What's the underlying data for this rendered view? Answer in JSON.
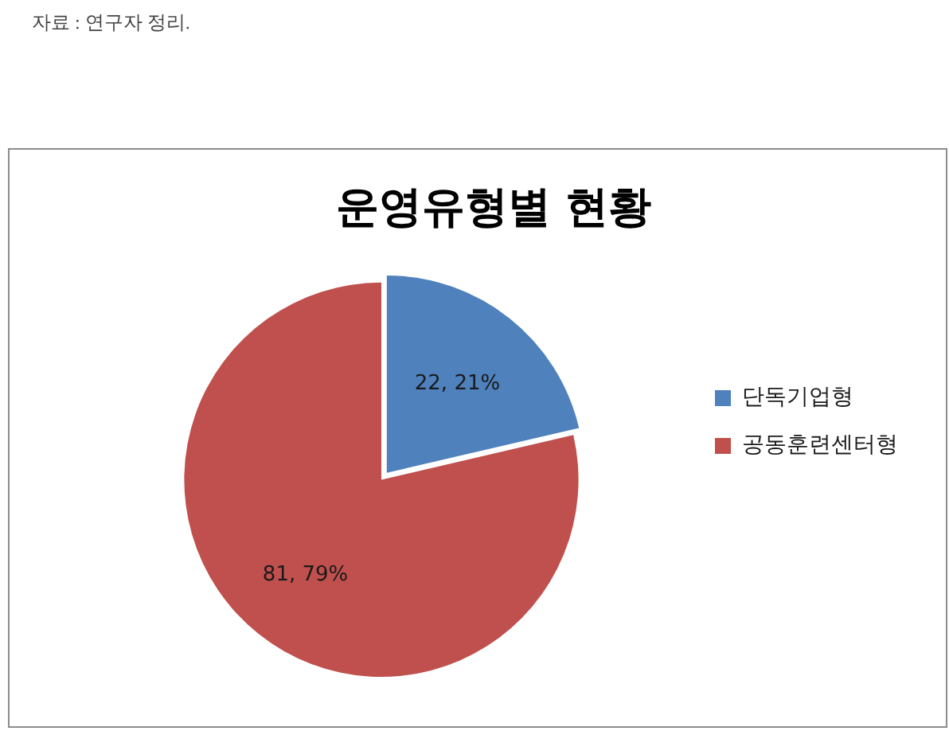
{
  "chart_data": {
    "type": "pie",
    "title": "운영유형별 현황",
    "categories": [
      "단독기업형",
      "공동훈련센터형"
    ],
    "values": [
      22,
      81
    ],
    "colors": [
      "#4f81bd",
      "#c0504d"
    ],
    "value_labels": [
      "22, 21%",
      "81, 79%"
    ],
    "legend": "right",
    "annotations": [
      "자료 : 연구자 정리."
    ]
  }
}
